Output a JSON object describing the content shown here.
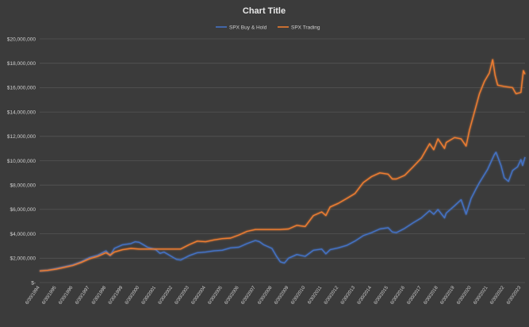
{
  "chart_data": {
    "type": "line",
    "title": "Chart Title",
    "legend_position": "top",
    "grid": true,
    "ylim": [
      0,
      20000000
    ],
    "y_tick_labels": [
      "$-",
      "$2,000,000",
      "$4,000,000",
      "$6,000,000",
      "$8,000,000",
      "$10,000,000",
      "$12,000,000",
      "$14,000,000",
      "$16,000,000",
      "$18,000,000",
      "$20,000,000"
    ],
    "y_tick_values": [
      0,
      2000000,
      4000000,
      6000000,
      8000000,
      10000000,
      12000000,
      14000000,
      16000000,
      18000000,
      20000000
    ],
    "x": [
      "6/30/1994",
      "6/30/1995",
      "6/30/1996",
      "6/30/1997",
      "6/30/1998",
      "6/30/1999",
      "6/30/2000",
      "6/30/2001",
      "6/30/2002",
      "6/30/2003",
      "6/30/2004",
      "6/30/2005",
      "6/30/2006",
      "6/30/2007",
      "6/30/2008",
      "6/30/2009",
      "6/30/2010",
      "6/30/2011",
      "6/30/2012",
      "6/30/2013",
      "6/30/2014",
      "6/30/2015",
      "6/30/2016",
      "6/30/2017",
      "6/30/2018",
      "6/30/2019",
      "6/30/2020",
      "6/30/2021",
      "6/30/2022",
      "6/30/2023"
    ],
    "series": [
      {
        "name": "SPX Buy & Hold",
        "color": "#4472c4",
        "points": [
          [
            1994.5,
            950000
          ],
          [
            1995.0,
            1000000
          ],
          [
            1995.5,
            1150000
          ],
          [
            1996.0,
            1300000
          ],
          [
            1996.5,
            1450000
          ],
          [
            1997.0,
            1700000
          ],
          [
            1997.5,
            2050000
          ],
          [
            1998.0,
            2250000
          ],
          [
            1998.5,
            2600000
          ],
          [
            1998.75,
            2200000
          ],
          [
            1999.0,
            2800000
          ],
          [
            1999.5,
            3100000
          ],
          [
            2000.0,
            3200000
          ],
          [
            2000.25,
            3350000
          ],
          [
            2000.5,
            3300000
          ],
          [
            2000.75,
            3100000
          ],
          [
            2001.0,
            2900000
          ],
          [
            2001.5,
            2700000
          ],
          [
            2001.75,
            2400000
          ],
          [
            2002.0,
            2500000
          ],
          [
            2002.5,
            2100000
          ],
          [
            2002.75,
            1900000
          ],
          [
            2003.0,
            1850000
          ],
          [
            2003.5,
            2200000
          ],
          [
            2004.0,
            2450000
          ],
          [
            2004.5,
            2500000
          ],
          [
            2005.0,
            2600000
          ],
          [
            2005.5,
            2650000
          ],
          [
            2006.0,
            2850000
          ],
          [
            2006.5,
            2900000
          ],
          [
            2007.0,
            3200000
          ],
          [
            2007.5,
            3450000
          ],
          [
            2007.75,
            3350000
          ],
          [
            2008.0,
            3100000
          ],
          [
            2008.5,
            2800000
          ],
          [
            2008.75,
            2200000
          ],
          [
            2009.0,
            1700000
          ],
          [
            2009.25,
            1600000
          ],
          [
            2009.5,
            2000000
          ],
          [
            2010.0,
            2300000
          ],
          [
            2010.5,
            2150000
          ],
          [
            2011.0,
            2650000
          ],
          [
            2011.5,
            2750000
          ],
          [
            2011.75,
            2350000
          ],
          [
            2012.0,
            2700000
          ],
          [
            2012.5,
            2850000
          ],
          [
            2013.0,
            3050000
          ],
          [
            2013.5,
            3400000
          ],
          [
            2014.0,
            3850000
          ],
          [
            2014.5,
            4100000
          ],
          [
            2015.0,
            4400000
          ],
          [
            2015.5,
            4500000
          ],
          [
            2015.75,
            4150000
          ],
          [
            2016.0,
            4100000
          ],
          [
            2016.5,
            4450000
          ],
          [
            2017.0,
            4900000
          ],
          [
            2017.5,
            5300000
          ],
          [
            2018.0,
            5900000
          ],
          [
            2018.25,
            5600000
          ],
          [
            2018.5,
            6000000
          ],
          [
            2018.9,
            5300000
          ],
          [
            2019.0,
            5700000
          ],
          [
            2019.5,
            6300000
          ],
          [
            2019.9,
            6800000
          ],
          [
            2020.2,
            5600000
          ],
          [
            2020.5,
            6900000
          ],
          [
            2020.8,
            7700000
          ],
          [
            2021.0,
            8200000
          ],
          [
            2021.5,
            9300000
          ],
          [
            2021.9,
            10500000
          ],
          [
            2022.0,
            10700000
          ],
          [
            2022.3,
            9600000
          ],
          [
            2022.5,
            8600000
          ],
          [
            2022.75,
            8300000
          ],
          [
            2023.0,
            9200000
          ],
          [
            2023.3,
            9500000
          ],
          [
            2023.5,
            10100000
          ],
          [
            2023.6,
            9600000
          ],
          [
            2023.75,
            10300000
          ]
        ]
      },
      {
        "name": "SPX Trading",
        "color": "#ed7d31",
        "points": [
          [
            1994.5,
            950000
          ],
          [
            1995.0,
            1000000
          ],
          [
            1995.5,
            1100000
          ],
          [
            1996.0,
            1250000
          ],
          [
            1996.5,
            1400000
          ],
          [
            1997.0,
            1650000
          ],
          [
            1997.5,
            1950000
          ],
          [
            1998.0,
            2150000
          ],
          [
            1998.5,
            2450000
          ],
          [
            1998.75,
            2250000
          ],
          [
            1999.0,
            2500000
          ],
          [
            1999.5,
            2700000
          ],
          [
            2000.0,
            2800000
          ],
          [
            2000.5,
            2750000
          ],
          [
            2001.0,
            2750000
          ],
          [
            2002.0,
            2750000
          ],
          [
            2003.0,
            2750000
          ],
          [
            2003.5,
            3100000
          ],
          [
            2004.0,
            3400000
          ],
          [
            2004.5,
            3350000
          ],
          [
            2005.0,
            3500000
          ],
          [
            2005.5,
            3600000
          ],
          [
            2006.0,
            3650000
          ],
          [
            2006.5,
            3900000
          ],
          [
            2007.0,
            4200000
          ],
          [
            2007.5,
            4350000
          ],
          [
            2008.0,
            4350000
          ],
          [
            2009.0,
            4350000
          ],
          [
            2009.5,
            4400000
          ],
          [
            2010.0,
            4700000
          ],
          [
            2010.5,
            4600000
          ],
          [
            2011.0,
            5500000
          ],
          [
            2011.5,
            5800000
          ],
          [
            2011.75,
            5500000
          ],
          [
            2012.0,
            6200000
          ],
          [
            2012.5,
            6500000
          ],
          [
            2013.0,
            6900000
          ],
          [
            2013.5,
            7300000
          ],
          [
            2014.0,
            8200000
          ],
          [
            2014.5,
            8700000
          ],
          [
            2015.0,
            9000000
          ],
          [
            2015.5,
            8900000
          ],
          [
            2015.75,
            8500000
          ],
          [
            2016.0,
            8500000
          ],
          [
            2016.5,
            8800000
          ],
          [
            2017.0,
            9500000
          ],
          [
            2017.5,
            10200000
          ],
          [
            2018.0,
            11400000
          ],
          [
            2018.25,
            10900000
          ],
          [
            2018.5,
            11800000
          ],
          [
            2018.9,
            11000000
          ],
          [
            2019.0,
            11500000
          ],
          [
            2019.5,
            11900000
          ],
          [
            2019.9,
            11800000
          ],
          [
            2020.2,
            11200000
          ],
          [
            2020.4,
            12500000
          ],
          [
            2020.6,
            13500000
          ],
          [
            2021.0,
            15500000
          ],
          [
            2021.3,
            16500000
          ],
          [
            2021.6,
            17200000
          ],
          [
            2021.8,
            18300000
          ],
          [
            2021.95,
            17000000
          ],
          [
            2022.1,
            16200000
          ],
          [
            2022.5,
            16100000
          ],
          [
            2023.0,
            16000000
          ],
          [
            2023.2,
            15500000
          ],
          [
            2023.5,
            15600000
          ],
          [
            2023.65,
            17400000
          ],
          [
            2023.75,
            17100000
          ]
        ]
      }
    ]
  }
}
